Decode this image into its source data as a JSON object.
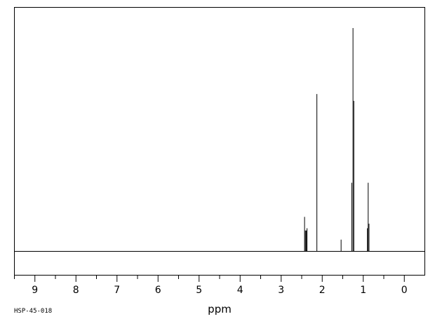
{
  "chart_data": {
    "type": "line",
    "title": "",
    "xlabel": "ppm",
    "ylabel": "",
    "xlim": [
      9.5,
      -0.5
    ],
    "x_reversed": true,
    "ylim": [
      0,
      1.0
    ],
    "x_ticks": [
      9,
      8,
      7,
      6,
      5,
      4,
      3,
      2,
      1,
      0
    ],
    "x_tick_labels": [
      "9",
      "8",
      "7",
      "6",
      "5",
      "4",
      "3",
      "2",
      "1",
      "0"
    ],
    "grid": false,
    "legend": "none",
    "code": "HSP-45-018",
    "peaks": [
      {
        "ppm": 2.43,
        "height": 0.15
      },
      {
        "ppm": 2.41,
        "height": 0.09
      },
      {
        "ppm": 2.39,
        "height": 0.09
      },
      {
        "ppm": 2.37,
        "height": 0.1
      },
      {
        "ppm": 2.13,
        "height": 0.69
      },
      {
        "ppm": 1.54,
        "height": 0.05
      },
      {
        "ppm": 1.28,
        "height": 0.3
      },
      {
        "ppm": 1.25,
        "height": 0.98
      },
      {
        "ppm": 1.23,
        "height": 0.66
      },
      {
        "ppm": 0.9,
        "height": 0.1
      },
      {
        "ppm": 0.88,
        "height": 0.3
      },
      {
        "ppm": 0.86,
        "height": 0.12
      }
    ]
  }
}
